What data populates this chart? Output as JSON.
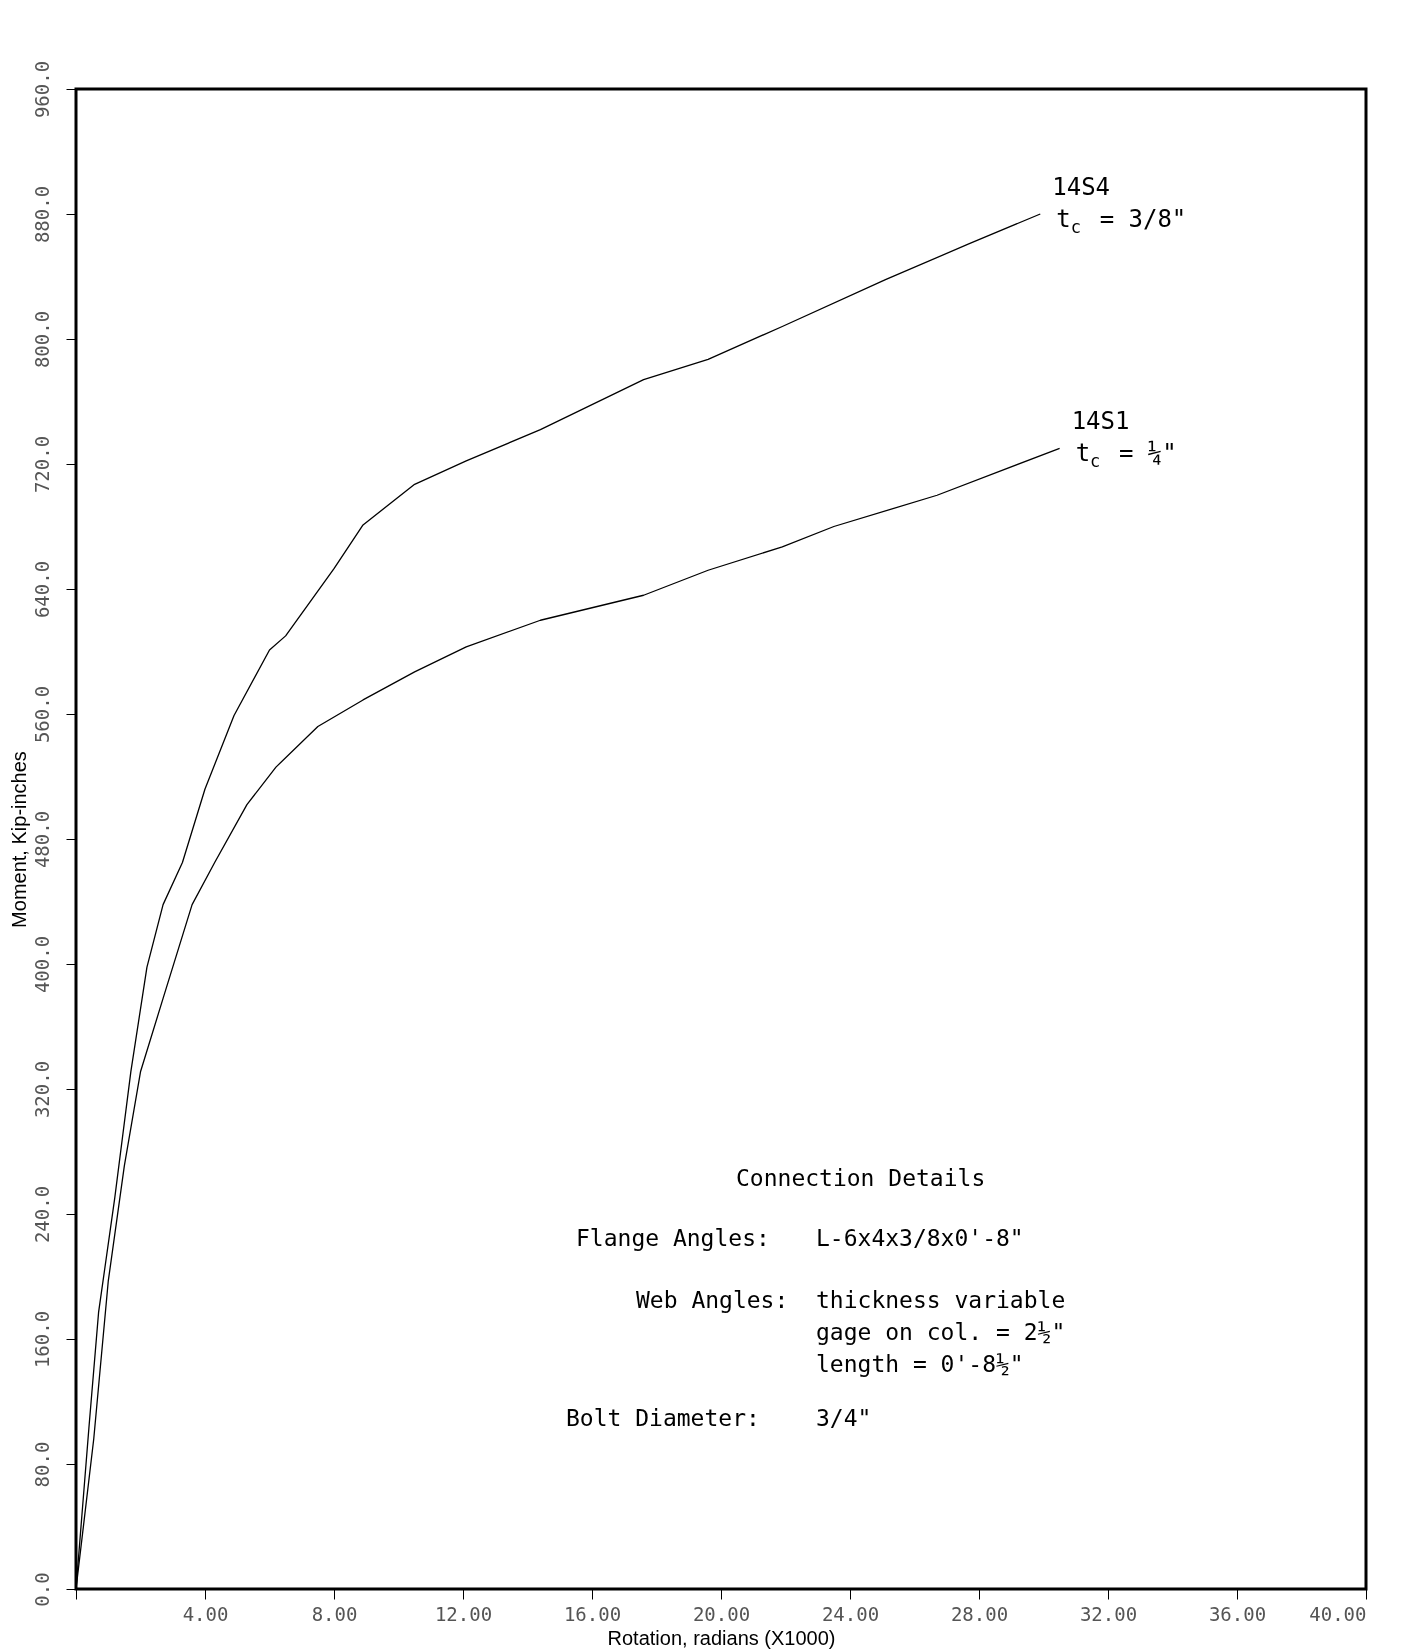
{
  "chart_data": {
    "type": "line",
    "xlabel": "Rotation, radians (X1000)",
    "ylabel": "Moment, Kip-inches",
    "xlim": [
      0,
      40
    ],
    "ylim": [
      0,
      960
    ],
    "xticks": [
      {
        "value": 0,
        "label": null
      },
      {
        "value": 4,
        "label": "4.00"
      },
      {
        "value": 8,
        "label": "8.00"
      },
      {
        "value": 12,
        "label": "12.00"
      },
      {
        "value": 16,
        "label": "16.00"
      },
      {
        "value": 20,
        "label": "20.00"
      },
      {
        "value": 24,
        "label": "24.00"
      },
      {
        "value": 28,
        "label": "28.00"
      },
      {
        "value": 32,
        "label": "32.00"
      },
      {
        "value": 36,
        "label": "36.00"
      },
      {
        "value": 40,
        "label": "40.00"
      }
    ],
    "yticks": [
      {
        "value": 0,
        "label": "0.0"
      },
      {
        "value": 80,
        "label": "80.0"
      },
      {
        "value": 160,
        "label": "160.0"
      },
      {
        "value": 240,
        "label": "240.0"
      },
      {
        "value": 320,
        "label": "320.0"
      },
      {
        "value": 400,
        "label": "400.0"
      },
      {
        "value": 480,
        "label": "480.0"
      },
      {
        "value": 560,
        "label": "560.0"
      },
      {
        "value": 640,
        "label": "640.0"
      },
      {
        "value": 720,
        "label": "720.0"
      },
      {
        "value": 800,
        "label": "800.0"
      },
      {
        "value": 880,
        "label": "880.0"
      },
      {
        "value": 960,
        "label": "960.0"
      }
    ],
    "grid": false,
    "legend": false,
    "series": [
      {
        "name": "14S4",
        "color": "#000000",
        "x": [
          0,
          0.4,
          0.7,
          1.2,
          1.7,
          2.2,
          2.7,
          3.3,
          4.0,
          4.9,
          6.0,
          6.5,
          8.0,
          8.9,
          10.5,
          12.1,
          14.4,
          17.6,
          19.6,
          21.9,
          25.1,
          27.7,
          29.9
        ],
        "values": [
          0,
          103,
          177,
          250,
          331,
          398,
          438,
          465,
          512,
          559,
          601,
          610,
          653,
          681,
          707,
          722,
          742,
          774,
          787,
          808,
          838,
          861,
          880
        ]
      },
      {
        "name": "14S1",
        "color": "#000000",
        "x": [
          0,
          0.55,
          1.0,
          1.5,
          2.0,
          2.7,
          3.6,
          4.3,
          5.3,
          6.2,
          7.5,
          8.9,
          10.5,
          12.1,
          14.4,
          17.6,
          19.6,
          21.9,
          23.5,
          26.7,
          30.5
        ],
        "values": [
          0,
          96,
          197,
          271,
          331,
          378,
          438,
          465,
          502,
          526,
          552,
          569,
          587,
          603,
          620,
          636,
          652,
          667,
          680,
          700,
          730
        ]
      }
    ],
    "annotations": [
      {
        "text": "t$_{c}$ = 3/8\"",
        "x": 29.9,
        "y": 880
      },
      {
        "text": "t$_{c}$ = ¼\"",
        "x": 30.5,
        "y": 730
      },
      "Connection Details",
      "Flange Angles:",
      "L-6x4x3/8x0'-8\"",
      "Web Angles:",
      "thickness variable",
      "gage on col. = 2½\"",
      "length = 0'-8½\"",
      "Bolt Diameter:",
      "3/4\""
    ]
  }
}
